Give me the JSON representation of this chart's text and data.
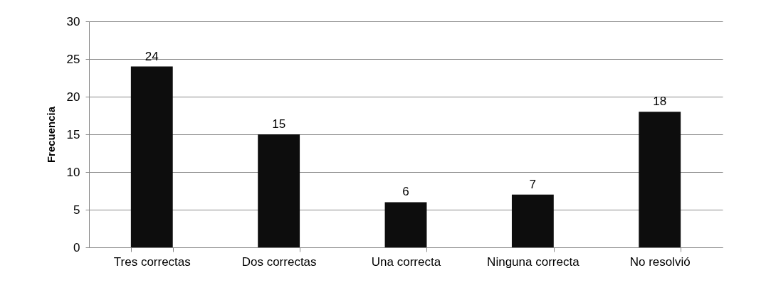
{
  "chart_data": {
    "type": "bar",
    "ylabel": "Frecuencia",
    "categories": [
      "Tres correctas",
      "Dos correctas",
      "Una correcta",
      "Ninguna correcta",
      "No resolvió"
    ],
    "values": [
      24,
      15,
      6,
      7,
      18
    ],
    "color": "#0d0d0d",
    "ylim": [
      0,
      30
    ],
    "yticks": [
      0,
      5,
      10,
      15,
      20,
      25,
      30
    ],
    "grid": "y",
    "data_labels": true
  }
}
